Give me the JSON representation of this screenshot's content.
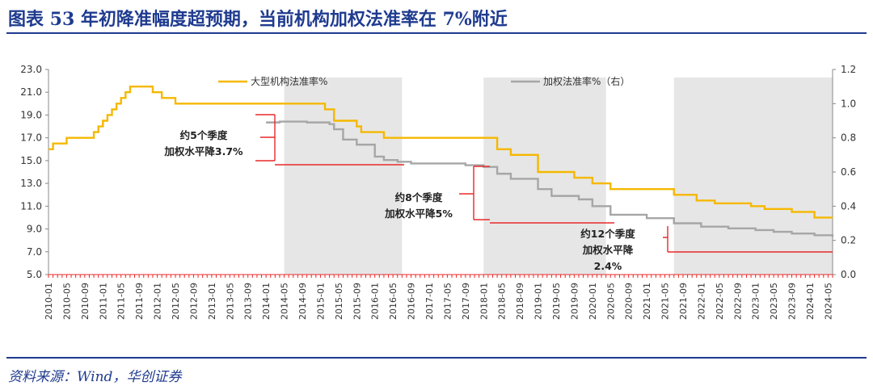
{
  "title": "图表 53   年初降准幅度超预期，当前机构加权法准率在 7%附近",
  "source": "资料来源：Wind，华创证券",
  "colors": {
    "title": "#1f3b8f",
    "series_primary": "#f5b800",
    "series_secondary": "#a6a6a6",
    "annotation": "#e8292a",
    "shading": "#e6e6e6"
  },
  "chart_data": {
    "type": "line",
    "title": "",
    "xlabel": "",
    "ylabel": "",
    "ylim_left": [
      5.0,
      23.0
    ],
    "ylim_right": [
      0.0,
      1.2
    ],
    "yticks_left": [
      "5.0",
      "7.0",
      "9.0",
      "11.0",
      "13.0",
      "15.0",
      "17.0",
      "19.0",
      "21.0",
      "23.0"
    ],
    "yticks_right": [
      "0.0",
      "0.2",
      "0.4",
      "0.6",
      "0.8",
      "1.0",
      "1.2"
    ],
    "x_range": [
      "2010-01",
      "2024-06"
    ],
    "x_ticks": [
      "2010-01",
      "2010-05",
      "2010-09",
      "2011-01",
      "2011-05",
      "2011-09",
      "2012-01",
      "2012-05",
      "2012-09",
      "2013-01",
      "2013-05",
      "2013-09",
      "2014-01",
      "2014-05",
      "2014-09",
      "2015-01",
      "2015-05",
      "2015-09",
      "2016-01",
      "2016-05",
      "2016-09",
      "2017-01",
      "2017-05",
      "2017-09",
      "2018-01",
      "2018-05",
      "2018-09",
      "2019-01",
      "2019-05",
      "2019-09",
      "2020-01",
      "2020-05",
      "2020-09",
      "2021-01",
      "2021-05",
      "2021-09",
      "2022-01",
      "2022-05",
      "2022-09",
      "2023-01",
      "2023-05",
      "2023-09",
      "2024-01",
      "2024-05"
    ],
    "grid": false,
    "legend_position": "top",
    "shaded_periods": [
      [
        "2014-05",
        "2016-07"
      ],
      [
        "2018-01",
        "2020-04"
      ],
      [
        "2021-07",
        "2024-06"
      ]
    ],
    "series": [
      {
        "name": "大型机构法准率%",
        "axis": "left",
        "points": [
          [
            "2010-01",
            16.0
          ],
          [
            "2010-02",
            16.5
          ],
          [
            "2010-05",
            17.0
          ],
          [
            "2010-11",
            17.5
          ],
          [
            "2010-12",
            18.0
          ],
          [
            "2011-01",
            18.5
          ],
          [
            "2011-02",
            19.0
          ],
          [
            "2011-03",
            19.5
          ],
          [
            "2011-04",
            20.0
          ],
          [
            "2011-05",
            20.5
          ],
          [
            "2011-06",
            21.0
          ],
          [
            "2011-07",
            21.5
          ],
          [
            "2011-12",
            21.0
          ],
          [
            "2012-02",
            20.5
          ],
          [
            "2012-05",
            20.0
          ],
          [
            "2015-02",
            19.5
          ],
          [
            "2015-04",
            18.5
          ],
          [
            "2015-09",
            18.0
          ],
          [
            "2015-10",
            17.5
          ],
          [
            "2016-03",
            17.0
          ],
          [
            "2018-04",
            16.0
          ],
          [
            "2018-07",
            15.5
          ],
          [
            "2019-01",
            14.5
          ],
          [
            "2019-01",
            14.0
          ],
          [
            "2019-09",
            13.5
          ],
          [
            "2020-01",
            13.0
          ],
          [
            "2020-05",
            12.5
          ],
          [
            "2021-07",
            12.0
          ],
          [
            "2021-12",
            11.5
          ],
          [
            "2022-04",
            11.25
          ],
          [
            "2022-12",
            11.0
          ],
          [
            "2023-03",
            10.75
          ],
          [
            "2023-09",
            10.5
          ],
          [
            "2024-02",
            10.0
          ],
          [
            "2024-06",
            10.0
          ]
        ]
      },
      {
        "name": "加权法准率%（右）",
        "axis": "right",
        "points": [
          [
            "2014-01",
            0.89
          ],
          [
            "2014-04",
            0.895
          ],
          [
            "2014-10",
            0.89
          ],
          [
            "2015-03",
            0.88
          ],
          [
            "2015-04",
            0.85
          ],
          [
            "2015-06",
            0.79
          ],
          [
            "2015-09",
            0.76
          ],
          [
            "2016-01",
            0.69
          ],
          [
            "2016-03",
            0.67
          ],
          [
            "2016-06",
            0.66
          ],
          [
            "2016-09",
            0.65
          ],
          [
            "2017-03",
            0.65
          ],
          [
            "2017-09",
            0.64
          ],
          [
            "2018-01",
            0.63
          ],
          [
            "2018-04",
            0.59
          ],
          [
            "2018-07",
            0.56
          ],
          [
            "2019-01",
            0.5
          ],
          [
            "2019-04",
            0.46
          ],
          [
            "2019-10",
            0.44
          ],
          [
            "2020-01",
            0.4
          ],
          [
            "2020-05",
            0.35
          ],
          [
            "2021-01",
            0.33
          ],
          [
            "2021-07",
            0.3
          ],
          [
            "2022-01",
            0.28
          ],
          [
            "2022-07",
            0.27
          ],
          [
            "2023-01",
            0.26
          ],
          [
            "2023-05",
            0.25
          ],
          [
            "2023-09",
            0.24
          ],
          [
            "2024-02",
            0.23
          ],
          [
            "2024-06",
            0.22
          ]
        ]
      }
    ],
    "annotations": [
      {
        "lines": [
          "约5个季度",
          "加权水平降3.7%"
        ]
      },
      {
        "lines": [
          "约8个季度",
          "加权水平降5%"
        ]
      },
      {
        "lines": [
          "约12个季度",
          "加权水平降",
          "2.4%"
        ]
      }
    ]
  }
}
